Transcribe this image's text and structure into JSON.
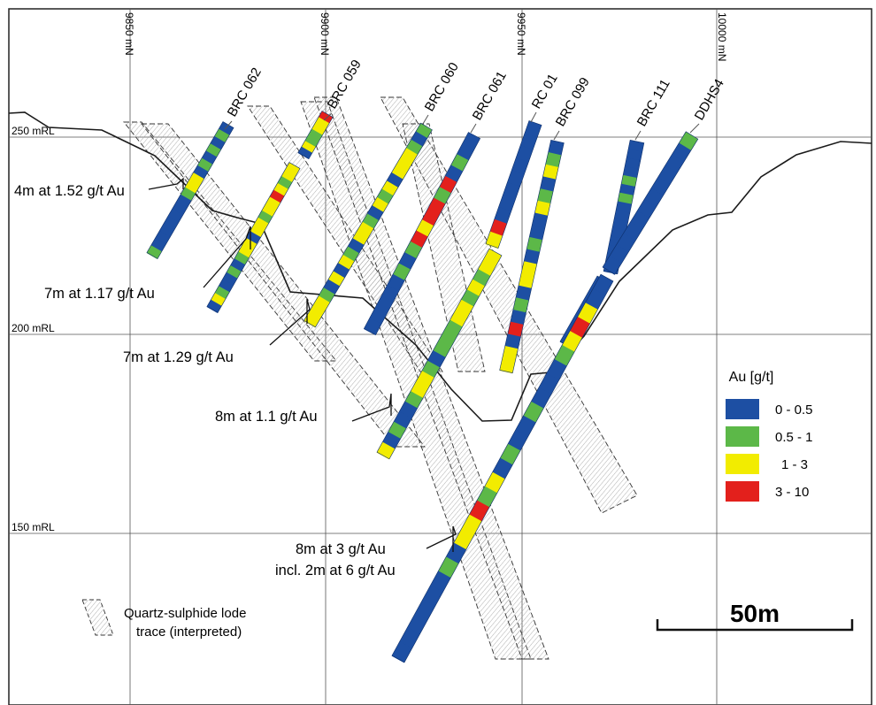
{
  "grid": {
    "northings": [
      "9850 mN",
      "9900 mN",
      "9950 mN",
      "10000 mN"
    ],
    "levels": [
      "250 mRL",
      "200 mRL",
      "150 mRL"
    ]
  },
  "holes": [
    "BRC 062",
    "BRC 059",
    "BRC 060",
    "BRC 061",
    "RC 01",
    "BRC 099",
    "BRC 111",
    "DDHS4"
  ],
  "callouts": [
    "4m at 1.52 g/t Au",
    "7m at 1.17 g/t Au",
    "7m at 1.29 g/t Au",
    "8m at 1.1 g/t Au",
    "8m at 3 g/t Au",
    "incl. 2m at 6 g/t Au"
  ],
  "legend": {
    "title": "Au [g/t]",
    "items": [
      {
        "label": "0 - 0.5",
        "color": "#1d4fa3"
      },
      {
        "label": "0.5 - 1",
        "color": "#5cb848"
      },
      {
        "label": "1 - 3",
        "color": "#f2ec00"
      },
      {
        "label": "3 - 10",
        "color": "#e3201c"
      }
    ]
  },
  "lode_legend": [
    "Quartz-sulphide lode",
    "trace (interpreted)"
  ],
  "scale": {
    "label": "50m"
  }
}
